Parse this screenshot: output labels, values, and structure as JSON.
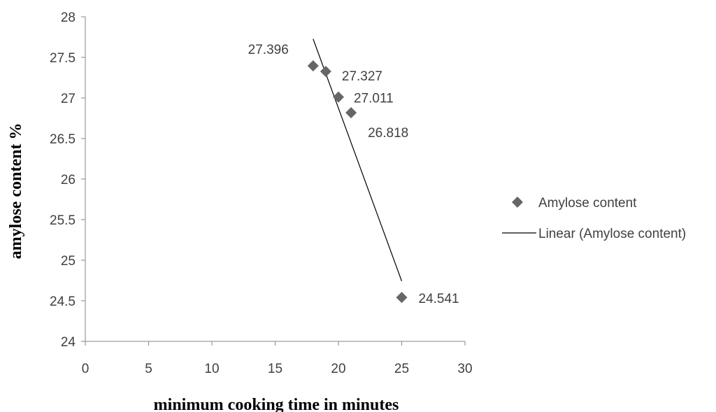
{
  "chart_data": {
    "type": "scatter",
    "title": "",
    "xlabel": "minimum cooking time in minutes",
    "ylabel": "amylose content %",
    "xlim": [
      0,
      30
    ],
    "ylim": [
      24,
      28
    ],
    "xticks": [
      0,
      5,
      10,
      15,
      20,
      25,
      30
    ],
    "yticks": [
      24,
      24.5,
      25,
      25.5,
      26,
      26.5,
      27,
      27.5,
      28
    ],
    "grid": false,
    "legend_position": "right",
    "series": [
      {
        "name": "Amylose content",
        "marker": "diamond",
        "color": "#666666",
        "points": [
          {
            "x": 18,
            "y": 27.396,
            "label": "27.396"
          },
          {
            "x": 19,
            "y": 27.327,
            "label": "27.327"
          },
          {
            "x": 20,
            "y": 27.011,
            "label": "27.011"
          },
          {
            "x": 21,
            "y": 26.818,
            "label": "26.818"
          },
          {
            "x": 25,
            "y": 24.541,
            "label": "24.541"
          }
        ]
      }
    ],
    "trendline": {
      "name": "Linear (Amylose content)",
      "type": "linear",
      "color": "#000000"
    }
  }
}
